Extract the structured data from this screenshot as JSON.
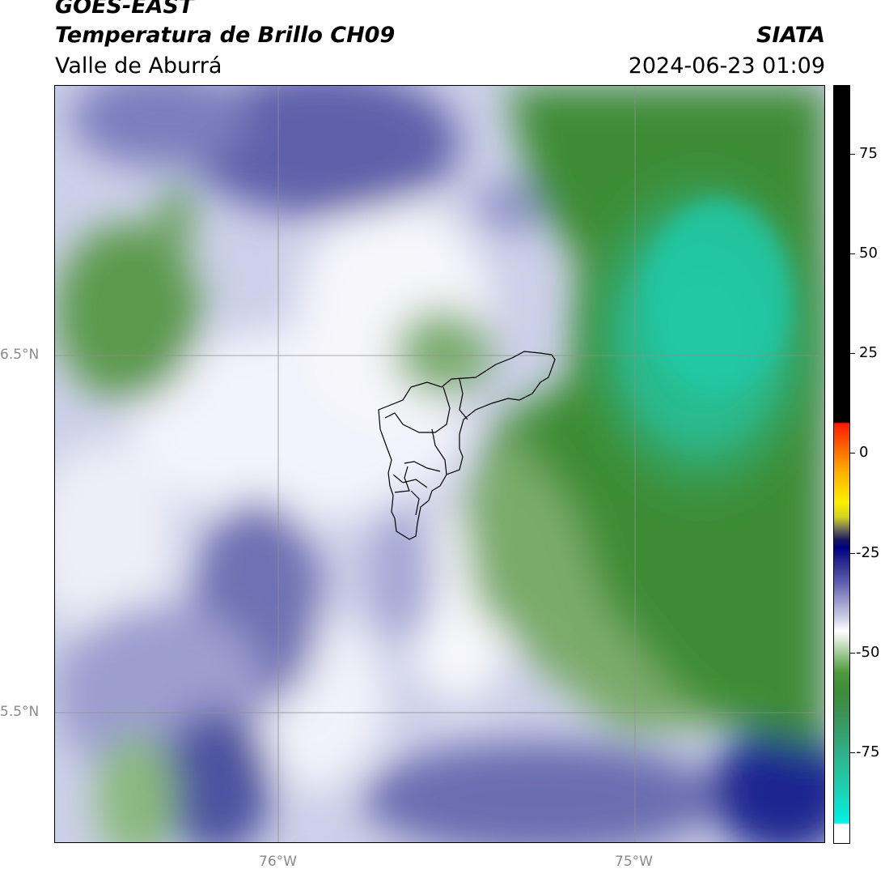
{
  "header": {
    "satellite": "GOES-EAST",
    "product": "Temperatura de Brillo CH09",
    "region": "Valle de Aburrá",
    "organization": "SIATA",
    "datetime": "2024-06-23 01:09"
  },
  "map": {
    "lat_labels": [
      "6.5°N",
      "5.5°N"
    ],
    "lon_labels": [
      "76°W",
      "75°W"
    ]
  },
  "colorbar": {
    "ticks": [
      "75",
      "50",
      "25",
      "0",
      "-25",
      "-50",
      "-75"
    ]
  },
  "colors": {
    "cold_green": "#3a8a32",
    "coldest_cyan": "#1fc9a3",
    "mid_lavender": "#a9abd6",
    "warm_indigo": "#3c3f92",
    "boundary": "#000000"
  }
}
